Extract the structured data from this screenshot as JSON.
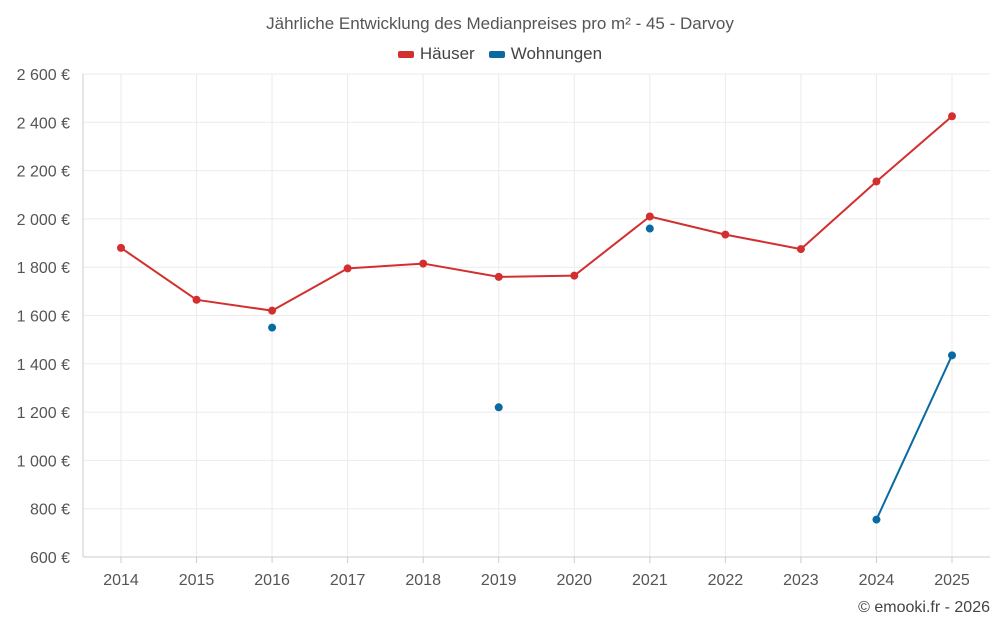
{
  "chart_data": {
    "type": "line",
    "title": "Jährliche Entwicklung des Medianpreises pro m² - 45 - Darvoy",
    "categories": [
      "2014",
      "2015",
      "2016",
      "2017",
      "2018",
      "2019",
      "2020",
      "2021",
      "2022",
      "2023",
      "2024",
      "2025"
    ],
    "series": [
      {
        "name": "Häuser",
        "color": "#d32f2f",
        "values": [
          1880,
          1665,
          1620,
          1795,
          1815,
          1760,
          1765,
          2010,
          1935,
          1875,
          2155,
          2425
        ]
      },
      {
        "name": "Wohnungen",
        "color": "#0b6aa2",
        "values": [
          null,
          null,
          1550,
          null,
          null,
          1220,
          null,
          1960,
          null,
          null,
          755,
          1435
        ]
      }
    ],
    "ylim": [
      600,
      2600
    ],
    "yticks": [
      600,
      800,
      1000,
      1200,
      1400,
      1600,
      1800,
      2000,
      2200,
      2400,
      2600
    ],
    "ytick_labels": [
      "600 €",
      "800 €",
      "1 000 €",
      "1 200 €",
      "1 400 €",
      "1 600 €",
      "1 800 €",
      "2 000 €",
      "2 200 €",
      "2 400 €",
      "2 600 €"
    ],
    "grid": true,
    "legend_position": "top-center"
  },
  "legend": {
    "houses_label": "Häuser",
    "apartments_label": "Wohnungen",
    "houses_color": "#d32f2f",
    "apartments_color": "#0b6aa2"
  },
  "footer": {
    "copyright": "© emooki.fr - 2026"
  }
}
